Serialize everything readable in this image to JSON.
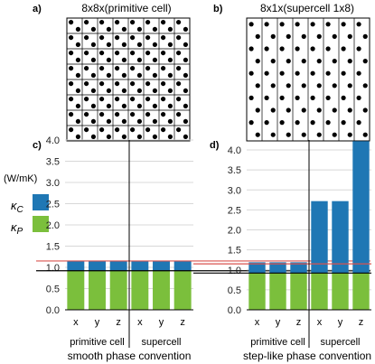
{
  "panel_a": {
    "letter": "a)",
    "title": "8x8x(primitive cell)",
    "grid": 8,
    "atoms_per_cell": 2
  },
  "panel_b": {
    "letter": "b)",
    "title": "8x1x(supercell 1x8)",
    "columns": 8,
    "atom_rows": 10
  },
  "legend": {
    "unit": "(W/mK)",
    "entries": [
      {
        "symbol": "κ",
        "sub": "C",
        "color": "#1f77b4"
      },
      {
        "symbol": "κ",
        "sub": "P",
        "color": "#7bbf3c"
      }
    ]
  },
  "chart_data": [
    {
      "type": "bar",
      "letter": "c)",
      "categories": [
        "x",
        "y",
        "z",
        "x",
        "y",
        "z"
      ],
      "groups": [
        {
          "label": "primitive cell",
          "count": 3
        },
        {
          "label": "supercell",
          "count": 3
        }
      ],
      "series": [
        {
          "name": "κ_P",
          "color": "#7bbf3c",
          "values": [
            0.92,
            0.92,
            0.92,
            0.92,
            0.92,
            0.92
          ]
        },
        {
          "name": "κ_C",
          "color": "#1f77b4",
          "values": [
            0.22,
            0.22,
            0.22,
            0.22,
            0.22,
            0.22
          ]
        }
      ],
      "stacked": true,
      "ylim": [
        0,
        4.0
      ],
      "yticks": [
        0.0,
        0.5,
        1.0,
        1.5,
        2.0,
        2.5,
        3.0,
        3.5,
        4.0
      ],
      "ytick_labels": [
        "0.0",
        "0.5",
        "1.0",
        "1.5",
        "2.0",
        "2.5",
        "3.0",
        "3.5",
        "4.0"
      ],
      "reference_lines": [
        {
          "y": 1.15,
          "color": "#d9534f"
        },
        {
          "y": 0.92,
          "color": "#000000"
        }
      ],
      "grid": true,
      "caption": "smooth phase convention"
    },
    {
      "type": "bar",
      "letter": "d)",
      "categories": [
        "x",
        "y",
        "z",
        "x",
        "y",
        "z"
      ],
      "groups": [
        {
          "label": "primitive cell",
          "count": 3
        },
        {
          "label": "supercell",
          "count": 3
        }
      ],
      "series": [
        {
          "name": "κ_P",
          "color": "#7bbf3c",
          "values": [
            0.92,
            0.92,
            0.92,
            0.92,
            0.92,
            0.92
          ]
        },
        {
          "name": "κ_C",
          "color": "#1f77b4",
          "values": [
            0.27,
            0.27,
            0.27,
            1.8,
            1.8,
            3.3
          ]
        }
      ],
      "stacked": true,
      "ylim": [
        0,
        4.25
      ],
      "yticks": [
        0.0,
        0.5,
        1.0,
        1.5,
        2.0,
        2.5,
        3.0,
        3.5,
        4.0
      ],
      "ytick_labels": [
        "0.0",
        "0.5",
        "1.0",
        "1.5",
        "2.0",
        "2.5",
        "3.0",
        "3.5",
        "4.0"
      ],
      "reference_lines": [
        {
          "y": 1.15,
          "color": "#d9534f"
        },
        {
          "y": 0.92,
          "color": "#000000"
        }
      ],
      "grid": true,
      "caption": "step-like phase convention"
    }
  ]
}
